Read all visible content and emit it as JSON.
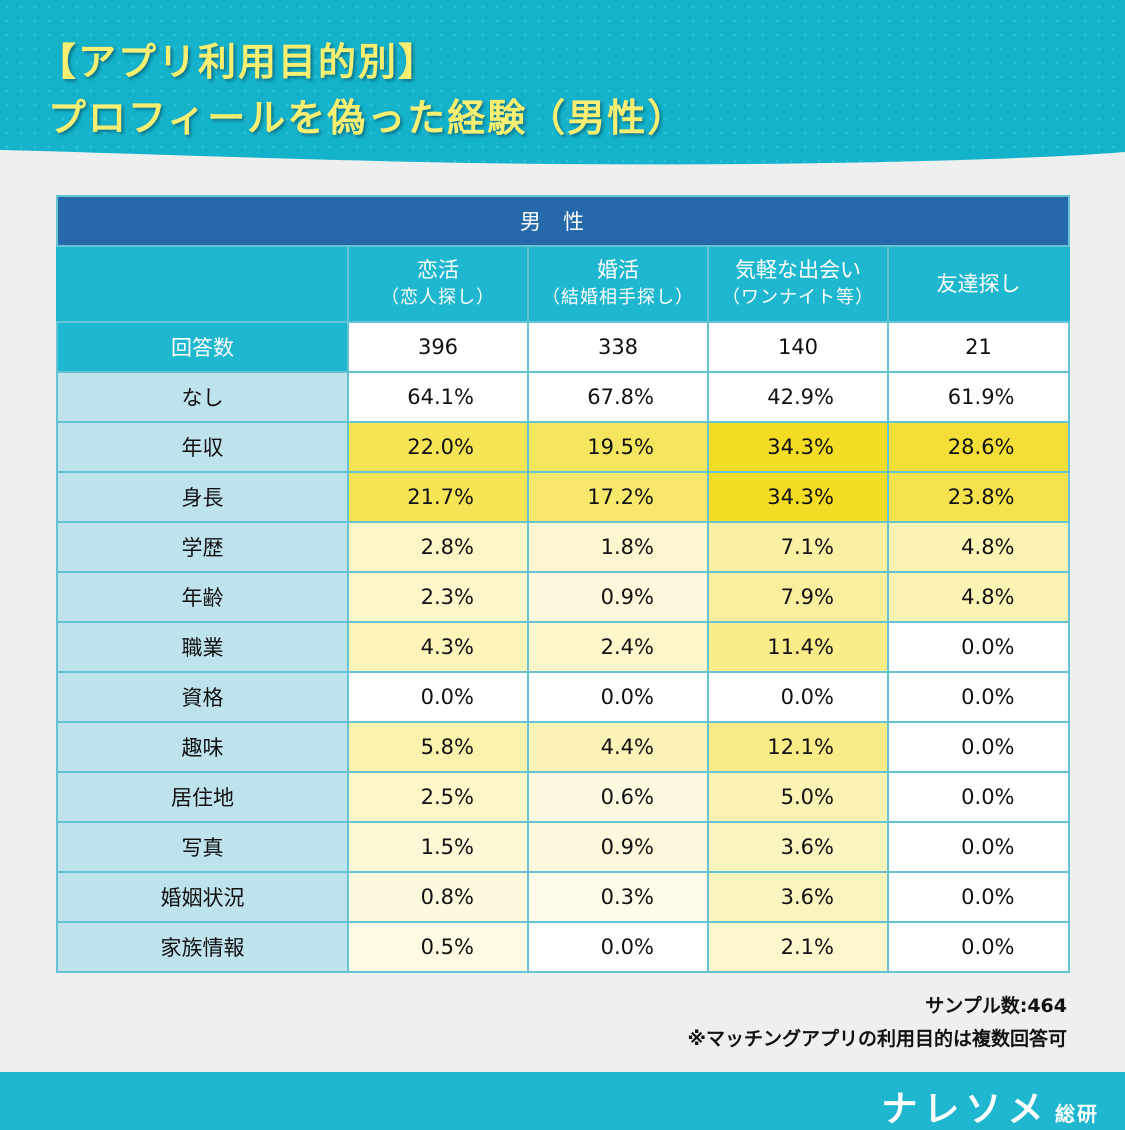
{
  "header": {
    "title_line1": "【アプリ利用目的別】",
    "title_line2": "プロフィールを偽った経験（男性）"
  },
  "colors": {
    "header_bg": "#14b3cb",
    "group_head_bg": "#2569ab",
    "col_head_bg": "#1fb7cf",
    "row_label_bg": "#bfe3ec",
    "title_text": "#f7ee72",
    "heat_max": "#f3dc23",
    "heat_min": "#ffffff"
  },
  "chart_data": {
    "type": "table",
    "title": "【アプリ利用目的別】プロフィールを偽った経験（男性）",
    "group_label": "男性",
    "columns": [
      {
        "label": "恋活",
        "sub": "（恋人探し）"
      },
      {
        "label": "婚活",
        "sub": "（結婚相手探し）"
      },
      {
        "label": "気軽な出会い",
        "sub": "（ワンナイト等）"
      },
      {
        "label": "友達探し",
        "sub": ""
      }
    ],
    "count_row": {
      "label": "回答数",
      "values": [
        "396",
        "338",
        "140",
        "21"
      ]
    },
    "rows": [
      {
        "label": "なし",
        "values": [
          64.1,
          67.8,
          42.9,
          61.9
        ],
        "heat": false
      },
      {
        "label": "年収",
        "values": [
          22.0,
          19.5,
          34.3,
          28.6
        ],
        "heat": true
      },
      {
        "label": "身長",
        "values": [
          21.7,
          17.2,
          34.3,
          23.8
        ],
        "heat": true
      },
      {
        "label": "学歴",
        "values": [
          2.8,
          1.8,
          7.1,
          4.8
        ],
        "heat": true
      },
      {
        "label": "年齢",
        "values": [
          2.3,
          0.9,
          7.9,
          4.8
        ],
        "heat": true
      },
      {
        "label": "職業",
        "values": [
          4.3,
          2.4,
          11.4,
          0.0
        ],
        "heat": true
      },
      {
        "label": "資格",
        "values": [
          0.0,
          0.0,
          0.0,
          0.0
        ],
        "heat": true
      },
      {
        "label": "趣味",
        "values": [
          5.8,
          4.4,
          12.1,
          0.0
        ],
        "heat": true
      },
      {
        "label": "居住地",
        "values": [
          2.5,
          0.6,
          5.0,
          0.0
        ],
        "heat": true
      },
      {
        "label": "写真",
        "values": [
          1.5,
          0.9,
          3.6,
          0.0
        ],
        "heat": true
      },
      {
        "label": "婚姻状況",
        "values": [
          0.8,
          0.3,
          3.6,
          0.0
        ],
        "heat": true
      },
      {
        "label": "家族情報",
        "values": [
          0.5,
          0.0,
          2.1,
          0.0
        ],
        "heat": true
      }
    ],
    "unit": "%"
  },
  "notes": {
    "sample": "サンプル数:464",
    "footnote": "※マッチングアプリの利用目的は複数回答可"
  },
  "footer": {
    "logo_main": "ナレソメ",
    "logo_sub": "総研"
  }
}
